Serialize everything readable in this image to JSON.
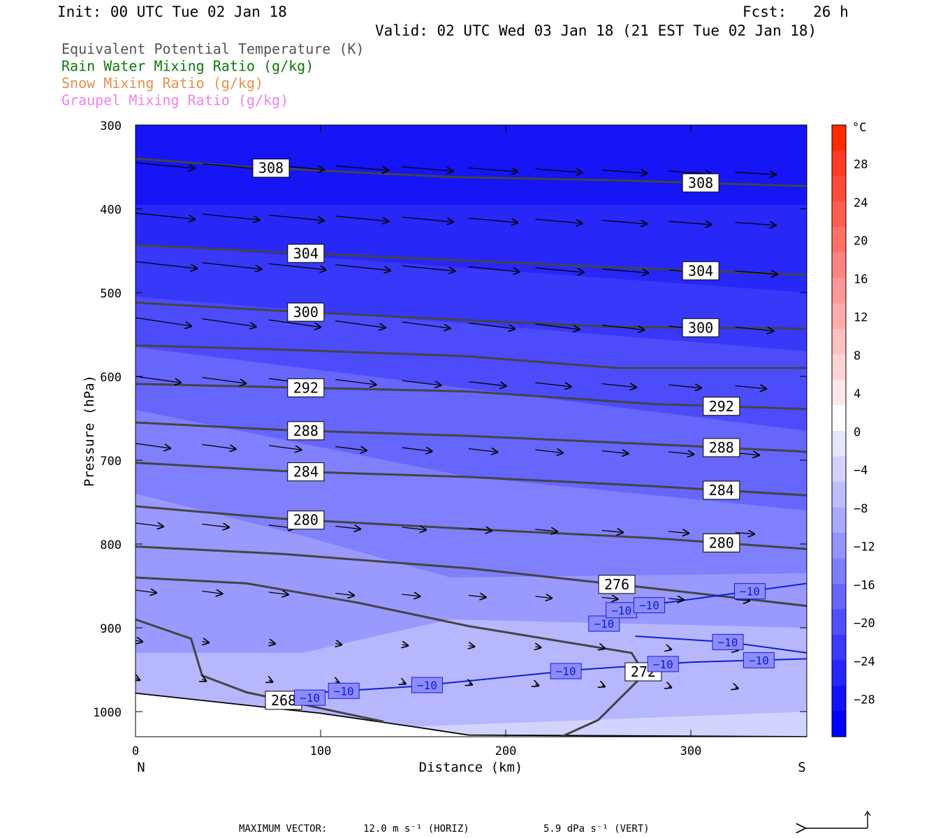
{
  "header": {
    "init": "Init: 00 UTC Tue 02 Jan 18",
    "fcst": "Fcst:   26 h",
    "valid": "Valid: 02 UTC Wed 03 Jan 18 (21 EST Tue 02 Jan 18)"
  },
  "legend": [
    {
      "label": "Equivalent Potential Temperature (K)",
      "color": "#555555"
    },
    {
      "label": "Rain Water Mixing Ratio (g/kg)",
      "color": "#0a7a0a"
    },
    {
      "label": "Snow Mixing Ratio (g/kg)",
      "color": "#e8904a"
    },
    {
      "label": "Graupel Mixing Ratio (g/kg)",
      "color": "#ee82ee"
    }
  ],
  "footer": {
    "max_vector_label": "MAXIMUM VECTOR:",
    "horiz": "12.0 m s⁻¹ (HORIZ)",
    "vert": "5.9 dPa s⁻¹ (VERT)"
  },
  "chart_data": {
    "type": "cross-section",
    "xlabel": "Distance (km)",
    "ylabel": "Pressure (hPa)",
    "xlim": [
      0,
      363
    ],
    "ylim": [
      1030,
      300
    ],
    "x_ticks": [
      0,
      100,
      200,
      300
    ],
    "y_ticks": [
      300,
      400,
      500,
      600,
      700,
      800,
      900,
      1000
    ],
    "x_end_labels": {
      "left": "N",
      "right": "S"
    },
    "colorbar": {
      "unit": "°C",
      "tick_labels": [
        28,
        24,
        20,
        16,
        12,
        8,
        4,
        0,
        -4,
        -8,
        -12,
        -16,
        -20,
        -24,
        -28
      ],
      "colors_top_to_bottom": [
        "#ff2a00",
        "#ff3b22",
        "#ff4a3a",
        "#ff5e50",
        "#ff7068",
        "#ff8480",
        "#ff9896",
        "#ffacab",
        "#ffc0c0",
        "#ffd4d4",
        "#ffe8e8",
        "#ffffff",
        "#e6e6ff",
        "#d2d2ff",
        "#bebeff",
        "#aaaaff",
        "#9494ff",
        "#7e7eff",
        "#6868ff",
        "#5050ff",
        "#3a3aff",
        "#2626ff",
        "#1212ff",
        "#0000ff"
      ]
    },
    "temperature_fill": [
      {
        "range": "below -28",
        "color": "#1515f5"
      },
      {
        "range": "-28 to -24",
        "color": "#2727f7"
      },
      {
        "range": "-24 to -20",
        "color": "#3838f9"
      },
      {
        "range": "-20 to -16",
        "color": "#4c4cfb"
      },
      {
        "range": "-16 to -12",
        "color": "#6666fc"
      },
      {
        "range": "-12 to -8",
        "color": "#8080fd"
      },
      {
        "range": "-8 to -4",
        "color": "#9a9afe"
      },
      {
        "range": "-4 to 0",
        "color": "#b7b7fe"
      }
    ],
    "theta_e_contours": [
      {
        "value": 308,
        "labels": [
          "308",
          "308"
        ],
        "points": [
          [
            0,
            340
          ],
          [
            60,
            350
          ],
          [
            170,
            362
          ],
          [
            260,
            366
          ],
          [
            363,
            373
          ]
        ]
      },
      {
        "value": 304,
        "labels": [
          "304",
          "304"
        ],
        "points": [
          [
            0,
            443
          ],
          [
            80,
            452
          ],
          [
            180,
            462
          ],
          [
            260,
            470
          ],
          [
            363,
            479
          ]
        ]
      },
      {
        "value": 300,
        "labels": [
          "300",
          "300"
        ],
        "points": [
          [
            0,
            512
          ],
          [
            80,
            522
          ],
          [
            180,
            533
          ],
          [
            260,
            541
          ],
          [
            363,
            543
          ]
        ]
      },
      {
        "value": 296,
        "labels": [],
        "points": [
          [
            0,
            563
          ],
          [
            80,
            568
          ],
          [
            180,
            576
          ],
          [
            260,
            590
          ],
          [
            363,
            590
          ]
        ]
      },
      {
        "value": 292,
        "labels": [
          "292",
          "292"
        ],
        "points": [
          [
            0,
            609
          ],
          [
            80,
            613
          ],
          [
            180,
            618
          ],
          [
            280,
            633
          ],
          [
            363,
            639
          ]
        ]
      },
      {
        "value": 288,
        "labels": [
          "288",
          "288"
        ],
        "points": [
          [
            0,
            655
          ],
          [
            80,
            664
          ],
          [
            180,
            671
          ],
          [
            280,
            681
          ],
          [
            363,
            690
          ]
        ]
      },
      {
        "value": 284,
        "labels": [
          "284",
          "284"
        ],
        "points": [
          [
            0,
            703
          ],
          [
            80,
            713
          ],
          [
            180,
            720
          ],
          [
            280,
            731
          ],
          [
            363,
            742
          ]
        ]
      },
      {
        "value": 280,
        "labels": [
          "280",
          "280"
        ],
        "points": [
          [
            0,
            755
          ],
          [
            80,
            770
          ],
          [
            180,
            782
          ],
          [
            280,
            793
          ],
          [
            363,
            806
          ]
        ]
      },
      {
        "value": 276,
        "labels": [
          "276"
        ],
        "points": [
          [
            0,
            803
          ],
          [
            80,
            812
          ],
          [
            180,
            829
          ],
          [
            280,
            853
          ],
          [
            363,
            874
          ]
        ]
      },
      {
        "value": 272,
        "labels": [
          "272"
        ],
        "points": [
          [
            0,
            840
          ],
          [
            60,
            847
          ],
          [
            120,
            870
          ],
          [
            180,
            898
          ],
          [
            268,
            930
          ],
          [
            275,
            955
          ],
          [
            250,
            1010
          ],
          [
            230,
            1030
          ]
        ]
      },
      {
        "value": 268,
        "labels": [
          "268"
        ],
        "points": [
          [
            0,
            890
          ],
          [
            30,
            913
          ],
          [
            36,
            957
          ],
          [
            60,
            977
          ],
          [
            100,
            996
          ],
          [
            134,
            1012
          ]
        ]
      }
    ],
    "rain_contours": [
      {
        "value": -10,
        "labels": [
          "-10",
          "-10",
          "-10",
          "-10",
          "-10",
          "-10"
        ],
        "points": [
          [
            90,
            988
          ],
          [
            100,
            977
          ],
          [
            150,
            970
          ],
          [
            240,
            950
          ],
          [
            300,
            941
          ],
          [
            363,
            937
          ]
        ]
      },
      {
        "value": -10,
        "labels": [
          "-10",
          "-10",
          "-10",
          "-10"
        ],
        "points": [
          [
            249,
            904
          ],
          [
            260,
            880
          ],
          [
            280,
            872
          ],
          [
            363,
            847
          ]
        ]
      },
      {
        "value": -10,
        "labels": [
          "-10"
        ],
        "points": [
          [
            270,
            910
          ],
          [
            320,
            917
          ],
          [
            363,
            930
          ]
        ]
      }
    ],
    "ground_boundary_points": [
      [
        0,
        978
      ],
      [
        100,
        1002
      ],
      [
        150,
        1018
      ],
      [
        180,
        1028
      ],
      [
        363,
        1030
      ]
    ]
  }
}
